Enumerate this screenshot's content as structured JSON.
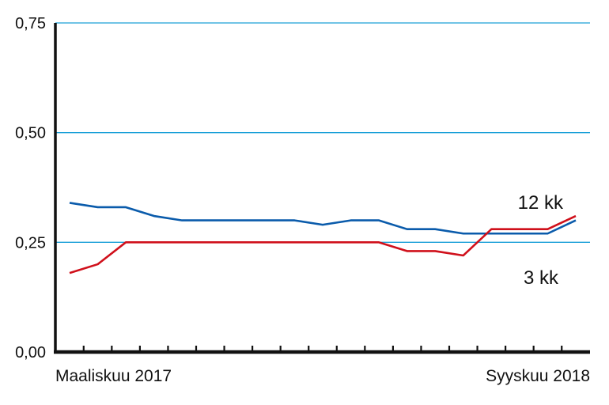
{
  "chart_data": {
    "type": "line",
    "ylim": [
      0,
      0.75
    ],
    "yticks": [
      "0,00",
      "0,25",
      "0,50",
      "0,75"
    ],
    "ytick_values": [
      0,
      0.25,
      0.5,
      0.75
    ],
    "x_start_label": "Maaliskuu 2017",
    "x_end_label": "Syyskuu 2018",
    "x": [
      "2017-03",
      "2017-04",
      "2017-05",
      "2017-06",
      "2017-07",
      "2017-08",
      "2017-09",
      "2017-10",
      "2017-11",
      "2017-12",
      "2018-01",
      "2018-02",
      "2018-03",
      "2018-04",
      "2018-05",
      "2018-06",
      "2018-07",
      "2018-08",
      "2018-09"
    ],
    "grid": true,
    "series": [
      {
        "name": "12 kk",
        "color": "#0a5bab",
        "values": [
          0.34,
          0.33,
          0.33,
          0.31,
          0.3,
          0.3,
          0.3,
          0.3,
          0.3,
          0.29,
          0.3,
          0.3,
          0.28,
          0.28,
          0.27,
          0.27,
          0.27,
          0.27,
          0.3
        ]
      },
      {
        "name": "3 kk",
        "color": "#d0101b",
        "values": [
          0.18,
          0.2,
          0.25,
          0.25,
          0.25,
          0.25,
          0.25,
          0.25,
          0.25,
          0.25,
          0.25,
          0.25,
          0.23,
          0.23,
          0.22,
          0.28,
          0.28,
          0.28,
          0.31
        ]
      }
    ],
    "gridline_color": "#1aa0d8",
    "axis_color": "#111111"
  }
}
